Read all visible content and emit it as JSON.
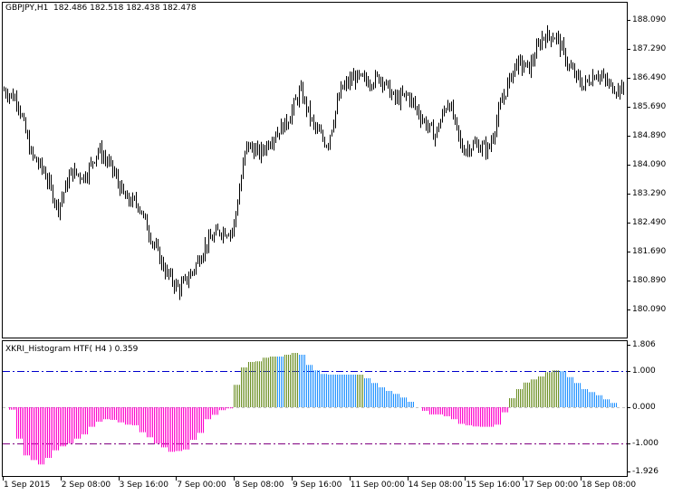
{
  "header": {
    "symbol_timeframe": "GBPJPY,H1",
    "open": "182.486",
    "high": "182.518",
    "low": "182.438",
    "close": "182.478"
  },
  "indicator": {
    "name": "XKRI_Histogram HTF( H4 )",
    "value": "0.359"
  },
  "price_axis": [
    "188.090",
    "187.290",
    "186.490",
    "185.690",
    "184.890",
    "184.090",
    "183.290",
    "182.490",
    "181.690",
    "180.890",
    "180.090"
  ],
  "indicator_axis": [
    "1.806",
    "1.000",
    "0.000",
    "-1.000",
    "-1.926"
  ],
  "time_axis": [
    "1 Sep 2015",
    "2 Sep 08:00",
    "3 Sep 16:00",
    "7 Sep 00:00",
    "8 Sep 08:00",
    "9 Sep 16:00",
    "11 Sep 00:00",
    "14 Sep 08:00",
    "15 Sep 16:00",
    "17 Sep 00:00",
    "18 Sep 08:00"
  ],
  "colors": {
    "negative": "#FF00CC",
    "rising": "#6B8E23",
    "falling": "#1E90FF",
    "upper_level": "#0000CC",
    "lower_level": "#800080",
    "zero_level": "#C0C0C0",
    "bars": "#000000"
  },
  "chart_data": {
    "type": "bar",
    "price": {
      "ylim": [
        179.8,
        188.6
      ],
      "close_path": [
        186.14,
        185.89,
        184.39,
        183.89,
        182.89,
        183.89,
        183.76,
        184.51,
        184.0,
        183.14,
        183.0,
        182.0,
        181.14,
        180.64,
        181.14,
        181.89,
        182.26,
        182.26,
        184.64,
        184.39,
        184.89,
        185.26,
        186.14,
        185.14,
        184.64,
        186.14,
        186.51,
        186.39,
        186.51,
        185.89,
        186.01,
        185.39,
        184.89,
        185.89,
        184.51,
        184.64,
        184.51,
        185.89,
        186.89,
        186.76,
        187.64,
        187.64,
        186.76,
        186.26,
        186.64,
        186.26,
        186.14
      ]
    },
    "histogram": {
      "timeframe": "H4",
      "ylim": [
        -1.926,
        1.806
      ],
      "levels": [
        1.0,
        0.0,
        -1.0
      ],
      "values": [
        -0.07,
        -0.87,
        -1.33,
        -1.46,
        -1.58,
        -1.4,
        -1.19,
        -1.08,
        -1.0,
        -0.87,
        -0.75,
        -0.54,
        -0.4,
        -0.33,
        -0.35,
        -0.42,
        -0.48,
        -0.5,
        -0.69,
        -0.83,
        -1.0,
        -1.11,
        -1.23,
        -1.21,
        -1.17,
        -0.9,
        -0.71,
        -0.33,
        -0.21,
        -0.08,
        -0.03,
        0.62,
        1.1,
        1.25,
        1.27,
        1.37,
        1.4,
        1.4,
        1.45,
        1.5,
        1.45,
        1.17,
        1.02,
        0.92,
        0.9,
        0.9,
        0.9,
        0.9,
        0.9,
        0.8,
        0.67,
        0.55,
        0.45,
        0.37,
        0.27,
        0.15,
        0.0,
        -0.1,
        -0.2,
        -0.2,
        -0.25,
        -0.33,
        -0.46,
        -0.5,
        -0.53,
        -0.54,
        -0.54,
        -0.48,
        -0.14,
        0.25,
        0.5,
        0.68,
        0.77,
        0.85,
        0.97,
        1.02,
        1.0,
        0.83,
        0.67,
        0.5,
        0.42,
        0.33,
        0.22,
        0.12
      ],
      "states": [
        "n",
        "n",
        "n",
        "n",
        "n",
        "n",
        "n",
        "n",
        "n",
        "n",
        "n",
        "n",
        "n",
        "n",
        "n",
        "n",
        "n",
        "n",
        "n",
        "n",
        "n",
        "n",
        "n",
        "n",
        "n",
        "n",
        "n",
        "n",
        "n",
        "n",
        "n",
        "r",
        "r",
        "r",
        "r",
        "r",
        "r",
        "f",
        "r",
        "r",
        "f",
        "f",
        "f",
        "f",
        "f",
        "f",
        "f",
        "f",
        "r",
        "f",
        "f",
        "f",
        "f",
        "f",
        "f",
        "f",
        "z",
        "n",
        "n",
        "n",
        "n",
        "n",
        "n",
        "n",
        "n",
        "n",
        "n",
        "n",
        "n",
        "r",
        "r",
        "r",
        "r",
        "r",
        "r",
        "r",
        "f",
        "f",
        "f",
        "f",
        "f",
        "f",
        "f",
        "f"
      ]
    }
  }
}
